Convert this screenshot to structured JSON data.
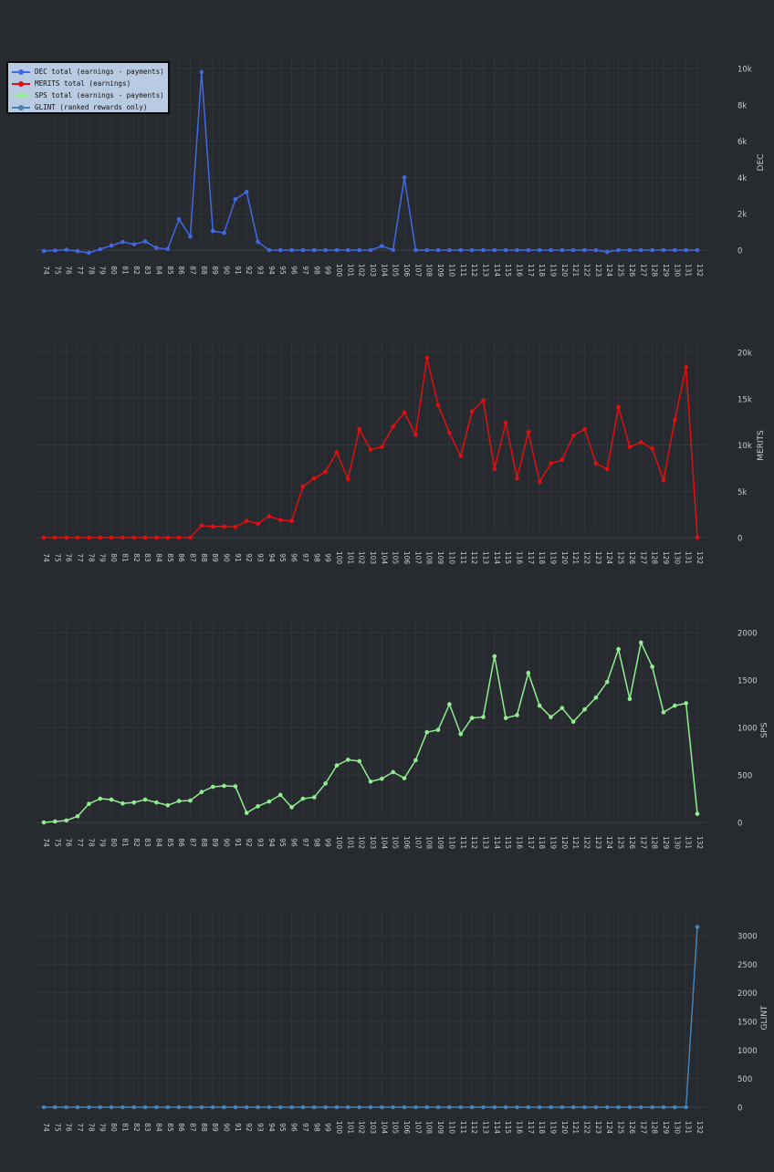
{
  "legend": [
    {
      "label": "DEC total (earnings - payments)",
      "color": "#4169e1"
    },
    {
      "label": "MERITS  total (earnings)",
      "color": "#e01010"
    },
    {
      "label": "SPS total (earnings - payments)",
      "color": "#90ee90"
    },
    {
      "label": "GLINT (ranked rewards only)",
      "color": "#4682b4"
    }
  ],
  "chart_data": [
    {
      "type": "line",
      "title": "",
      "xlabel": "",
      "ylabel": "DEC",
      "color": "#4169e1",
      "grid": true,
      "x": [
        74,
        75,
        76,
        77,
        78,
        79,
        80,
        81,
        82,
        83,
        84,
        85,
        86,
        87,
        88,
        89,
        90,
        91,
        92,
        93,
        94,
        95,
        96,
        97,
        98,
        99,
        100,
        101,
        102,
        103,
        104,
        105,
        106,
        107,
        108,
        109,
        110,
        111,
        112,
        113,
        114,
        115,
        116,
        117,
        118,
        119,
        120,
        121,
        122,
        123,
        124,
        125,
        126,
        127,
        128,
        129,
        130,
        131,
        132
      ],
      "values": [
        -50,
        -20,
        20,
        -60,
        -150,
        50,
        250,
        450,
        320,
        480,
        120,
        60,
        1700,
        750,
        9800,
        1050,
        950,
        2800,
        3200,
        450,
        0,
        0,
        0,
        0,
        0,
        0,
        0,
        0,
        0,
        0,
        220,
        10,
        4000,
        0,
        0,
        0,
        0,
        0,
        0,
        0,
        0,
        0,
        0,
        0,
        0,
        0,
        0,
        0,
        0,
        0,
        -100,
        0,
        0,
        0,
        0,
        0,
        0,
        0,
        0
      ],
      "ylim": [
        -800,
        10000
      ],
      "yticks": [
        0,
        2000,
        4000,
        6000,
        8000,
        10000
      ],
      "yticklabels": [
        "0",
        "2k",
        "4k",
        "6k",
        "8k",
        "10k"
      ]
    },
    {
      "type": "line",
      "title": "",
      "xlabel": "",
      "ylabel": "MERITS",
      "color": "#e01010",
      "grid": true,
      "x": [
        74,
        75,
        76,
        77,
        78,
        79,
        80,
        81,
        82,
        83,
        84,
        85,
        86,
        87,
        88,
        89,
        90,
        91,
        92,
        93,
        94,
        95,
        96,
        97,
        98,
        99,
        100,
        101,
        102,
        103,
        104,
        105,
        106,
        107,
        108,
        109,
        110,
        111,
        112,
        113,
        114,
        115,
        116,
        117,
        118,
        119,
        120,
        121,
        122,
        123,
        124,
        125,
        126,
        127,
        128,
        129,
        130,
        131,
        132
      ],
      "values": [
        0,
        0,
        0,
        0,
        0,
        0,
        0,
        0,
        0,
        0,
        0,
        0,
        0,
        0,
        1300,
        1200,
        1200,
        1150,
        1800,
        1500,
        2300,
        1900,
        1800,
        5500,
        6400,
        7100,
        9200,
        6300,
        11700,
        9500,
        9800,
        12000,
        13500,
        11100,
        19400,
        14300,
        11300,
        8800,
        13600,
        14800,
        7400,
        12400,
        6400,
        11400,
        6000,
        8000,
        8400,
        11000,
        11700,
        8000,
        7400,
        14100,
        9800,
        10300,
        9600,
        6200,
        12700,
        18400,
        0
      ],
      "ylim": [
        -1500,
        20000
      ],
      "yticks": [
        0,
        5000,
        10000,
        15000,
        20000
      ],
      "yticklabels": [
        "0",
        "5k",
        "10k",
        "15k",
        "20k"
      ]
    },
    {
      "type": "line",
      "title": "",
      "xlabel": "",
      "ylabel": "SPS",
      "color": "#90ee90",
      "grid": true,
      "x": [
        74,
        75,
        76,
        77,
        78,
        79,
        80,
        81,
        82,
        83,
        84,
        85,
        86,
        87,
        88,
        89,
        90,
        91,
        92,
        93,
        94,
        95,
        96,
        97,
        98,
        99,
        100,
        101,
        102,
        103,
        104,
        105,
        106,
        107,
        108,
        109,
        110,
        111,
        112,
        113,
        114,
        115,
        116,
        117,
        118,
        119,
        120,
        121,
        122,
        123,
        124,
        125,
        126,
        127,
        128,
        129,
        130,
        131,
        132
      ],
      "values": [
        0,
        10,
        20,
        65,
        195,
        250,
        240,
        200,
        210,
        240,
        210,
        180,
        225,
        230,
        320,
        375,
        385,
        380,
        100,
        170,
        220,
        290,
        160,
        250,
        265,
        410,
        600,
        660,
        645,
        430,
        460,
        530,
        465,
        655,
        950,
        975,
        1245,
        930,
        1100,
        1110,
        1750,
        1100,
        1130,
        1575,
        1230,
        1110,
        1205,
        1060,
        1190,
        1315,
        1480,
        1825,
        1300,
        1895,
        1640,
        1160,
        1230,
        1255,
        90
      ],
      "ylim": [
        -150,
        2000
      ],
      "yticks": [
        0,
        500,
        1000,
        1500,
        2000
      ],
      "yticklabels": [
        "0",
        "500",
        "1000",
        "1500",
        "2000"
      ]
    },
    {
      "type": "line",
      "title": "",
      "xlabel": "",
      "ylabel": "GLINT",
      "color": "#4682b4",
      "grid": true,
      "x": [
        74,
        75,
        76,
        77,
        78,
        79,
        80,
        81,
        82,
        83,
        84,
        85,
        86,
        87,
        88,
        89,
        90,
        91,
        92,
        93,
        94,
        95,
        96,
        97,
        98,
        99,
        100,
        101,
        102,
        103,
        104,
        105,
        106,
        107,
        108,
        109,
        110,
        111,
        112,
        113,
        114,
        115,
        116,
        117,
        118,
        119,
        120,
        121,
        122,
        123,
        124,
        125,
        126,
        127,
        128,
        129,
        130,
        131,
        132
      ],
      "values": [
        0,
        0,
        0,
        0,
        0,
        0,
        0,
        0,
        0,
        0,
        0,
        0,
        0,
        0,
        0,
        0,
        0,
        0,
        0,
        0,
        0,
        0,
        0,
        0,
        0,
        0,
        0,
        0,
        0,
        0,
        0,
        0,
        0,
        0,
        0,
        0,
        0,
        0,
        0,
        0,
        0,
        0,
        0,
        0,
        0,
        0,
        0,
        0,
        0,
        0,
        0,
        0,
        0,
        0,
        0,
        0,
        0,
        0,
        3150
      ],
      "ylim": [
        -200,
        3300
      ],
      "yticks": [
        0,
        500,
        1000,
        1500,
        2000,
        2500,
        3000
      ],
      "yticklabels": [
        "0",
        "500",
        "1000",
        "1500",
        "2000",
        "2500",
        "3000"
      ]
    }
  ]
}
